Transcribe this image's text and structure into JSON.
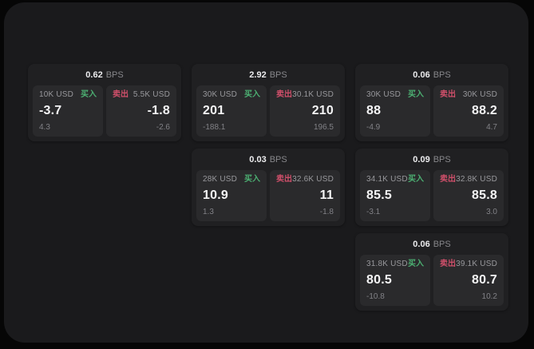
{
  "theme": {
    "backdrop": "#060606",
    "window_bg": "#1a1a1c",
    "card_bg": "#202022",
    "panel_bg": "#2a2a2c",
    "text_primary": "#f4f4f5",
    "text_muted": "#98989c",
    "buy_green": "#4caf72",
    "sell_red": "#cf4f6a"
  },
  "labels": {
    "bps_unit": "BPS",
    "buy": "买入",
    "sell": "卖出"
  },
  "cards": [
    {
      "bps_value": "0.62",
      "bps_unit": "BPS",
      "buy": {
        "amount": "10K USD",
        "side_label": "买入",
        "price": "-3.7",
        "delta": "4.3"
      },
      "sell": {
        "side_label": "卖出",
        "amount": "5.5K USD",
        "price": "-1.8",
        "delta": "-2.6"
      }
    },
    {
      "bps_value": "2.92",
      "bps_unit": "BPS",
      "buy": {
        "amount": "30K USD",
        "side_label": "买入",
        "price": "201",
        "delta": "-188.1"
      },
      "sell": {
        "side_label": "卖出",
        "amount": "30.1K USD",
        "price": "210",
        "delta": "196.5"
      }
    },
    {
      "bps_value": "0.06",
      "bps_unit": "BPS",
      "buy": {
        "amount": "30K USD",
        "side_label": "买入",
        "price": "88",
        "delta": "-4.9"
      },
      "sell": {
        "side_label": "卖出",
        "amount": "30K USD",
        "price": "88.2",
        "delta": "4.7"
      }
    },
    {
      "bps_value": "0.03",
      "bps_unit": "BPS",
      "buy": {
        "amount": "28K USD",
        "side_label": "买入",
        "price": "10.9",
        "delta": "1.3"
      },
      "sell": {
        "side_label": "卖出",
        "amount": "32.6K USD",
        "price": "11",
        "delta": "-1.8"
      }
    },
    {
      "bps_value": "0.09",
      "bps_unit": "BPS",
      "buy": {
        "amount": "34.1K USD",
        "side_label": "买入",
        "price": "85.5",
        "delta": "-3.1"
      },
      "sell": {
        "side_label": "卖出",
        "amount": "32.8K USD",
        "price": "85.8",
        "delta": "3.0"
      }
    },
    {
      "bps_value": "0.06",
      "bps_unit": "BPS",
      "buy": {
        "amount": "31.8K USD",
        "side_label": "买入",
        "price": "80.5",
        "delta": "-10.8"
      },
      "sell": {
        "side_label": "卖出",
        "amount": "39.1K USD",
        "price": "80.7",
        "delta": "10.2"
      }
    }
  ]
}
